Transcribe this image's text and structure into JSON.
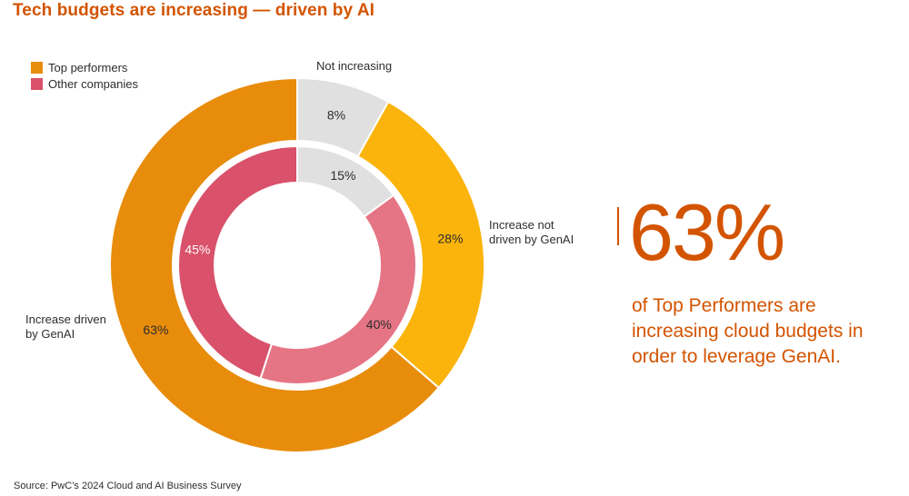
{
  "title": "Tech budgets are increasing — driven by AI",
  "legend": [
    {
      "label": "Top performers",
      "color": "#e88c0b"
    },
    {
      "label": "Other companies",
      "color": "#d9516a"
    }
  ],
  "chart_data": {
    "type": "pie",
    "variant": "nested-donut",
    "title": "Tech budgets are increasing — driven by AI",
    "categories": [
      "Not increasing",
      "Increase not driven by GenAI",
      "Increase driven by GenAI"
    ],
    "category_labels": {
      "not_increasing": "Not increasing",
      "increase_not_genai": [
        "Increase not",
        "driven by GenAI"
      ],
      "increase_genai": [
        "Increase driven",
        "by GenAI"
      ]
    },
    "series": [
      {
        "name": "Top performers",
        "ring": "outer",
        "values": [
          8,
          28,
          63
        ],
        "labels": [
          "8%",
          "28%",
          "63%"
        ],
        "colors": [
          "#e0e0e0",
          "#fbb40b",
          "#e88c0b"
        ]
      },
      {
        "name": "Other companies",
        "ring": "inner",
        "values": [
          15,
          40,
          45
        ],
        "labels": [
          "15%",
          "40%",
          "45%"
        ],
        "colors": [
          "#e0e0e0",
          "#e57585",
          "#d9516a"
        ]
      }
    ],
    "legend_position": "top-left"
  },
  "stat": {
    "value": "63%",
    "lines": [
      "of Top Performers are",
      "increasing cloud budgets in",
      "order to leverage GenAI."
    ],
    "color": "#d35400"
  },
  "source": "Source: PwC’s 2024 Cloud and AI Business Survey"
}
